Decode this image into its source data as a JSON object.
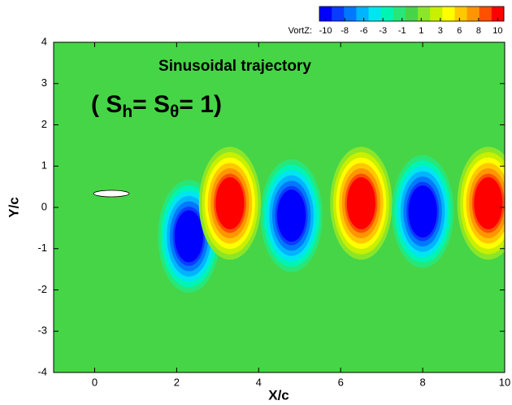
{
  "chart_data": {
    "type": "contour",
    "title": "Sinusoidal trajectory",
    "annotation": {
      "parts": [
        "( S",
        "h",
        "= S",
        "θ",
        "= 1)"
      ]
    },
    "x_label": "X/c",
    "y_label": "Y/c",
    "xlim": [
      -1,
      10
    ],
    "ylim": [
      -4,
      4
    ],
    "xticks": [
      0,
      2,
      4,
      6,
      8,
      10
    ],
    "yticks": [
      -4,
      -3,
      -2,
      -1,
      0,
      1,
      2,
      3,
      4
    ],
    "background_color": "#46d546",
    "colorbar": {
      "label": "VortZ:",
      "ticks": [
        -10,
        -8,
        -6,
        -3,
        -1,
        1,
        3,
        6,
        8,
        10
      ],
      "colors": [
        "#0000ff",
        "#0a3cff",
        "#0078ff",
        "#00b4ff",
        "#00e6f0",
        "#00f5b4",
        "#28e678",
        "#46d546",
        "#8ce628",
        "#c8f000",
        "#ffff00",
        "#ffc800",
        "#ff9600",
        "#ff5000",
        "#ff0000"
      ]
    },
    "vortices": [
      {
        "x": 2.3,
        "y": -0.7,
        "vortZ": -10
      },
      {
        "x": 3.3,
        "y": 0.1,
        "vortZ": 10
      },
      {
        "x": 4.8,
        "y": -0.2,
        "vortZ": -10
      },
      {
        "x": 6.5,
        "y": 0.1,
        "vortZ": 10
      },
      {
        "x": 8.0,
        "y": -0.1,
        "vortZ": -10
      },
      {
        "x": 9.6,
        "y": 0.1,
        "vortZ": 10
      }
    ]
  }
}
